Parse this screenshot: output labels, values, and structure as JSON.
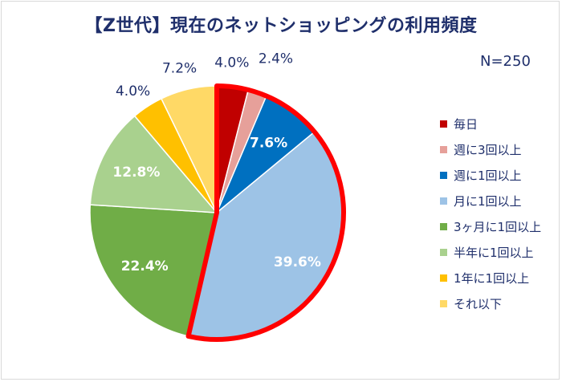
{
  "title": "【Z世代】現在のネットショッピングの利用頻度",
  "sample_size": "N=250",
  "chart_data": {
    "type": "pie",
    "title": "【Z世代】現在のネットショッピングの利用頻度",
    "labels": [
      "毎日",
      "週に3回以上",
      "週に1回以上",
      "月に1回以上",
      "3ヶ月に1回以上",
      "半年に1回以上",
      "1年に1回以上",
      "それ以下"
    ],
    "values": [
      4.0,
      2.4,
      7.6,
      39.6,
      22.4,
      12.8,
      4.0,
      7.2
    ],
    "value_labels": [
      "4.0%",
      "2.4%",
      "7.6%",
      "39.6%",
      "22.4%",
      "12.8%",
      "4.0%",
      "7.2%"
    ],
    "colors": [
      "#c00000",
      "#e6a09a",
      "#0070c0",
      "#9dc3e6",
      "#70ad47",
      "#a9d18e",
      "#ffc000",
      "#ffd966"
    ],
    "label_colors": [
      "#1f2f6b",
      "#1f2f6b",
      "#ffffff",
      "#ffffff",
      "#ffffff",
      "#ffffff",
      "#1f2f6b",
      "#1f2f6b"
    ],
    "highlight_color": "#ff0000",
    "highlighted_categories": [
      "毎日",
      "週に3回以上",
      "週に1回以上",
      "月に1回以上"
    ],
    "start_angle": "12 o'clock",
    "direction": "clockwise",
    "legend_position": "right"
  }
}
